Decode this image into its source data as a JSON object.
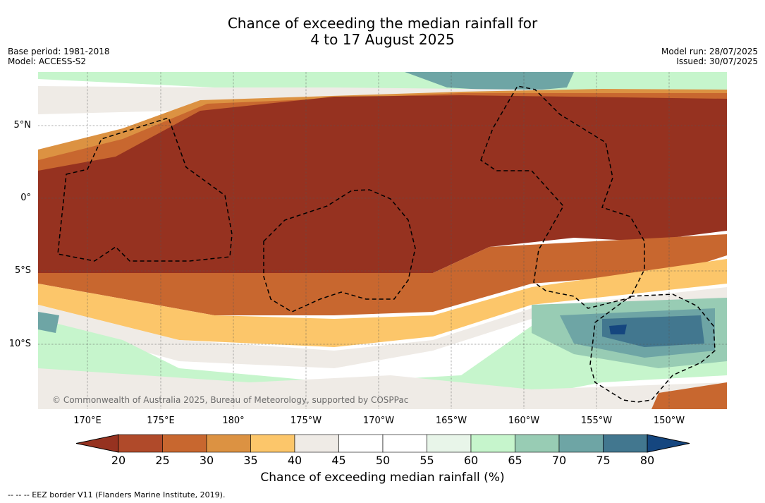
{
  "header": {
    "title_line1": "Chance of exceeding the median rainfall for",
    "title_line2": "4 to 17 August 2025",
    "base_period": "Base period: 1981-2018",
    "model": "Model: ACCESS-S2",
    "model_run": "Model run: 28/07/2025",
    "issued": "Issued: 30/07/2025"
  },
  "map": {
    "lat_labels": [
      "5°N",
      "0°",
      "5°S",
      "10°S"
    ],
    "lon_labels": [
      "170°E",
      "175°E",
      "180°",
      "175°W",
      "170°W",
      "165°W",
      "160°W",
      "155°W",
      "150°W"
    ],
    "copyright": "© Commonwealth of Australia 2025, Bureau of Meteorology, supported by COSPPac"
  },
  "colorbar": {
    "ticks": [
      "20",
      "25",
      "30",
      "35",
      "40",
      "45",
      "50",
      "55",
      "60",
      "65",
      "70",
      "75",
      "80"
    ],
    "colors": [
      "#963220",
      "#b04a2a",
      "#c8672f",
      "#dc9242",
      "#fcc66a",
      "#efebe6",
      "#ffffff",
      "#ffffff",
      "#e8f5e9",
      "#c6f5cc",
      "#98ccb4",
      "#6ea5a5",
      "#42778f",
      "#15467f"
    ],
    "label": "Chance of exceeding median rainfall (%)"
  },
  "footer": {
    "legend_text": "--  --  -- EEZ border V11 (Flanders Marine Institute, 2019)."
  }
}
